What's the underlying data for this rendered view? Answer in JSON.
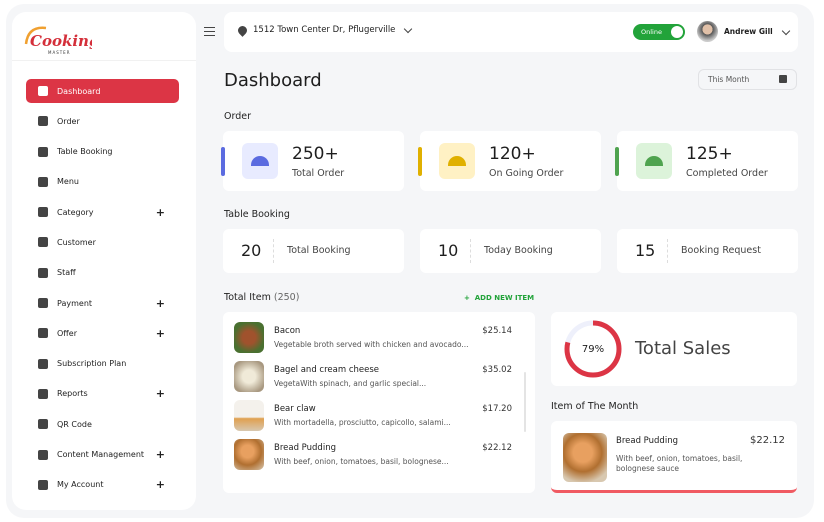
{
  "brand": {
    "name": "Cooking",
    "sub": "MASTER"
  },
  "sidebar": {
    "items": [
      {
        "label": "Dashboard",
        "active": true,
        "icon": "dashboard-icon"
      },
      {
        "label": "Order",
        "icon": "order-icon"
      },
      {
        "label": "Table Booking",
        "icon": "table-booking-icon"
      },
      {
        "label": "Menu",
        "icon": "menu-icon"
      },
      {
        "label": "Category",
        "icon": "category-icon",
        "expand": "+"
      },
      {
        "label": "Customer",
        "icon": "customer-icon"
      },
      {
        "label": "Staff",
        "icon": "staff-icon"
      },
      {
        "label": "Payment",
        "icon": "payment-icon",
        "expand": "+"
      },
      {
        "label": "Offer",
        "icon": "offer-icon",
        "expand": "+"
      },
      {
        "label": "Subscription Plan",
        "icon": "subscription-icon"
      },
      {
        "label": "Reports",
        "icon": "reports-icon",
        "expand": "+"
      },
      {
        "label": "QR Code",
        "icon": "qr-code-icon"
      },
      {
        "label": "Content Management",
        "icon": "content-icon",
        "expand": "+"
      },
      {
        "label": "My Account",
        "icon": "account-icon",
        "expand": "+"
      }
    ]
  },
  "header": {
    "address": "1512 Town Center Dr, Pflugerville",
    "status": "Online",
    "user": "Andrew Gill"
  },
  "page": {
    "title": "Dashboard",
    "period": "This Month"
  },
  "orders": {
    "title": "Order",
    "cards": [
      {
        "value": "250+",
        "label": "Total Order",
        "color": "#5b6be0",
        "bg": "#e8ebff"
      },
      {
        "value": "120+",
        "label": "On Going Order",
        "color": "#e0b000",
        "bg": "#fff1c4"
      },
      {
        "value": "125+",
        "label": "Completed Order",
        "color": "#4fa34f",
        "bg": "#dcf3da"
      }
    ]
  },
  "booking": {
    "title": "Table Booking",
    "cards": [
      {
        "value": "20",
        "label": "Total Booking"
      },
      {
        "value": "10",
        "label": "Today Booking"
      },
      {
        "value": "15",
        "label": "Booking Request"
      }
    ]
  },
  "items": {
    "title": "Total Item",
    "count": "(250)",
    "add": "ADD NEW ITEM",
    "list": [
      {
        "name": "Bacon",
        "desc": "Vegetable broth served with chicken and avocado...",
        "price": "$25.14"
      },
      {
        "name": "Bagel and cream cheese",
        "desc": "VegetaWith spinach, and garlic special...",
        "price": "$35.02"
      },
      {
        "name": "Bear claw",
        "desc": "With mortadella, prosciutto, capicollo, salami...",
        "price": "$17.20"
      },
      {
        "name": "Bread Pudding",
        "desc": "With beef, onion, tomatoes, basil, bolognese...",
        "price": "$22.12"
      }
    ]
  },
  "sales": {
    "percent": 79,
    "percent_label": "79%",
    "label": "Total Sales",
    "color": "#dc3545"
  },
  "item_of_month": {
    "title": "Item of The Month",
    "name": "Bread Pudding",
    "price": "$22.12",
    "desc": "With beef, onion, tomatoes, basil, bolognese sauce"
  }
}
